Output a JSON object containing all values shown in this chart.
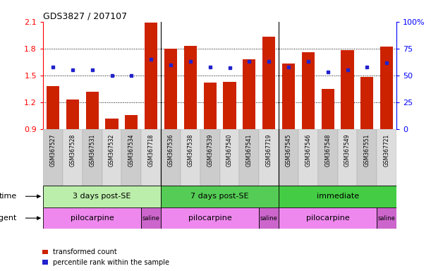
{
  "title": "GDS3827 / 207107",
  "samples": [
    "GSM367527",
    "GSM367528",
    "GSM367531",
    "GSM367532",
    "GSM367534",
    "GSM367718",
    "GSM367536",
    "GSM367538",
    "GSM367539",
    "GSM367540",
    "GSM367541",
    "GSM367719",
    "GSM367545",
    "GSM367546",
    "GSM367548",
    "GSM367549",
    "GSM367551",
    "GSM367721"
  ],
  "transformed_count": [
    1.38,
    1.23,
    1.32,
    1.02,
    1.06,
    2.09,
    1.8,
    1.83,
    1.42,
    1.43,
    1.68,
    1.93,
    1.63,
    1.76,
    1.35,
    1.78,
    1.48,
    1.82
  ],
  "percentile_rank": [
    58,
    55,
    55,
    50,
    50,
    65,
    60,
    63,
    58,
    57,
    63,
    63,
    58,
    63,
    53,
    55,
    58,
    62
  ],
  "ymin": 0.9,
  "ymax": 2.1,
  "bar_color": "#cc2200",
  "dot_color": "#2222cc",
  "bar_bottom": 0.9,
  "time_groups": [
    {
      "label": "3 days post-SE",
      "start": 0,
      "end": 5,
      "color": "#bbeeaa"
    },
    {
      "label": "7 days post-SE",
      "start": 6,
      "end": 11,
      "color": "#55cc55"
    },
    {
      "label": "immediate",
      "start": 12,
      "end": 17,
      "color": "#44cc44"
    }
  ],
  "agent_groups": [
    {
      "label": "pilocarpine",
      "start": 0,
      "end": 4,
      "color": "#ee88ee"
    },
    {
      "label": "saline",
      "start": 5,
      "end": 5,
      "color": "#cc66cc"
    },
    {
      "label": "pilocarpine",
      "start": 6,
      "end": 10,
      "color": "#ee88ee"
    },
    {
      "label": "saline",
      "start": 11,
      "end": 11,
      "color": "#cc66cc"
    },
    {
      "label": "pilocarpine",
      "start": 12,
      "end": 16,
      "color": "#ee88ee"
    },
    {
      "label": "saline",
      "start": 17,
      "end": 17,
      "color": "#cc66cc"
    }
  ],
  "dotted_lines": [
    1.2,
    1.5,
    1.8
  ],
  "left_ticks": [
    0.9,
    1.2,
    1.5,
    1.8,
    2.1
  ],
  "right_ticks": [
    0,
    25,
    50,
    75,
    100
  ],
  "right_tick_labels": [
    "0",
    "25",
    "50",
    "75",
    "100%"
  ],
  "legend_labels": [
    "transformed count",
    "percentile rank within the sample"
  ],
  "legend_colors": [
    "#cc2200",
    "#2222cc"
  ]
}
